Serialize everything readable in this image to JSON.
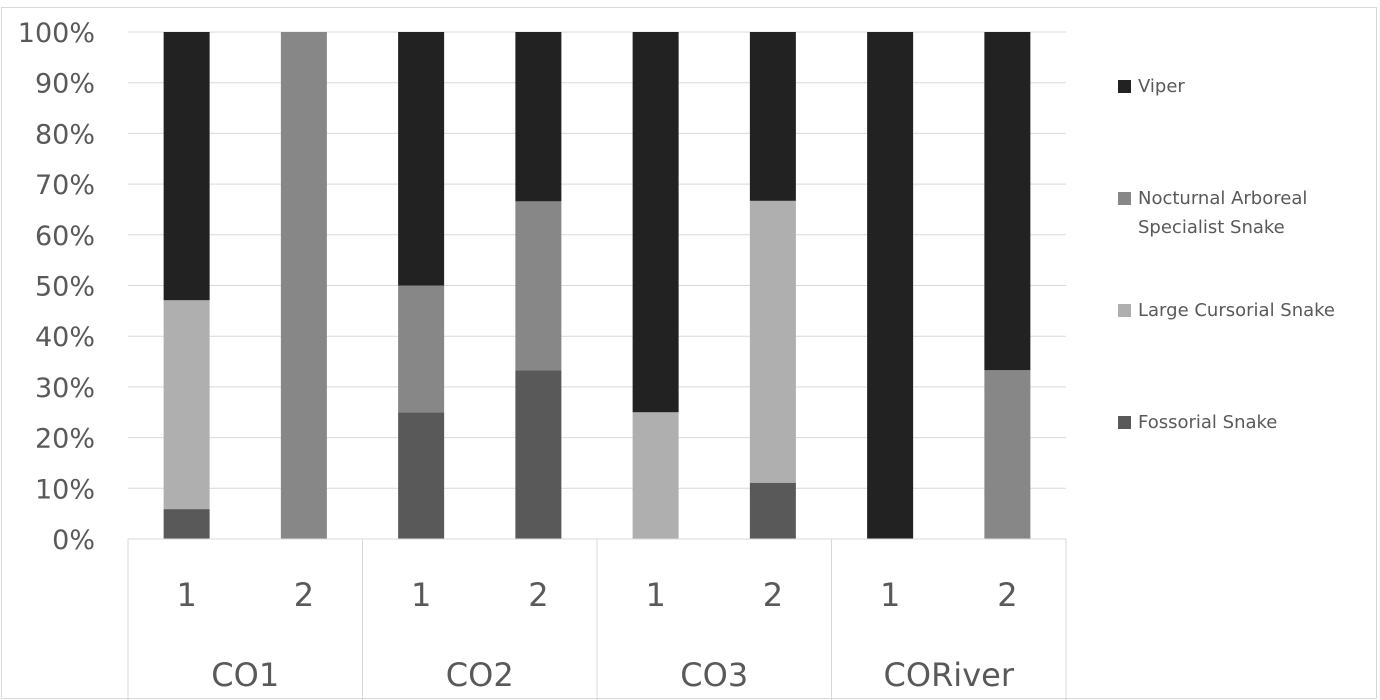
{
  "chart_data": {
    "type": "bar",
    "stacked": true,
    "percent": true,
    "title": "",
    "xlabel": "",
    "ylabel": "",
    "ylim": [
      0,
      100
    ],
    "y_ticks": [
      "0%",
      "10%",
      "20%",
      "30%",
      "40%",
      "50%",
      "60%",
      "70%",
      "80%",
      "90%",
      "100%"
    ],
    "grid": true,
    "legend_position": "right",
    "groups": [
      {
        "label": "CO1",
        "categories": [
          "1",
          "2"
        ]
      },
      {
        "label": "CO2",
        "categories": [
          "1",
          "2"
        ]
      },
      {
        "label": "CO3",
        "categories": [
          "1",
          "2"
        ]
      },
      {
        "label": "CORiver",
        "categories": [
          "1",
          "2"
        ]
      }
    ],
    "categories": [
      "CO1 1",
      "CO1 2",
      "CO2 1",
      "CO2 2",
      "CO3 1",
      "CO3 2",
      "CORiver 1",
      "CORiver 2"
    ],
    "series": [
      {
        "name": "Fossorial Snake",
        "color": "#595959",
        "values": [
          5.9,
          0,
          25,
          33.3,
          0,
          11.1,
          0,
          0
        ]
      },
      {
        "name": "Large Cursorial Snake",
        "color": "#afafaf",
        "values": [
          41.2,
          0,
          0,
          0,
          25,
          55.6,
          0,
          0
        ]
      },
      {
        "name": "Nocturnal Arboreal Specialist Snake",
        "color": "#878787",
        "values": [
          0,
          100,
          25,
          33.3,
          0,
          0,
          0,
          33.3
        ]
      },
      {
        "name": "Viper",
        "color": "#222222",
        "values": [
          52.9,
          0,
          50,
          33.4,
          75,
          33.3,
          100,
          66.7
        ]
      }
    ],
    "legend": [
      {
        "label": "Viper",
        "color": "#222222"
      },
      {
        "label": "Nocturnal Arboreal Specialist Snake",
        "lines": [
          "Nocturnal Arboreal",
          "Specialist Snake"
        ],
        "color": "#878787"
      },
      {
        "label": "Large Cursorial Snake",
        "color": "#afafaf"
      },
      {
        "label": "Fossorial Snake",
        "color": "#595959"
      }
    ]
  }
}
